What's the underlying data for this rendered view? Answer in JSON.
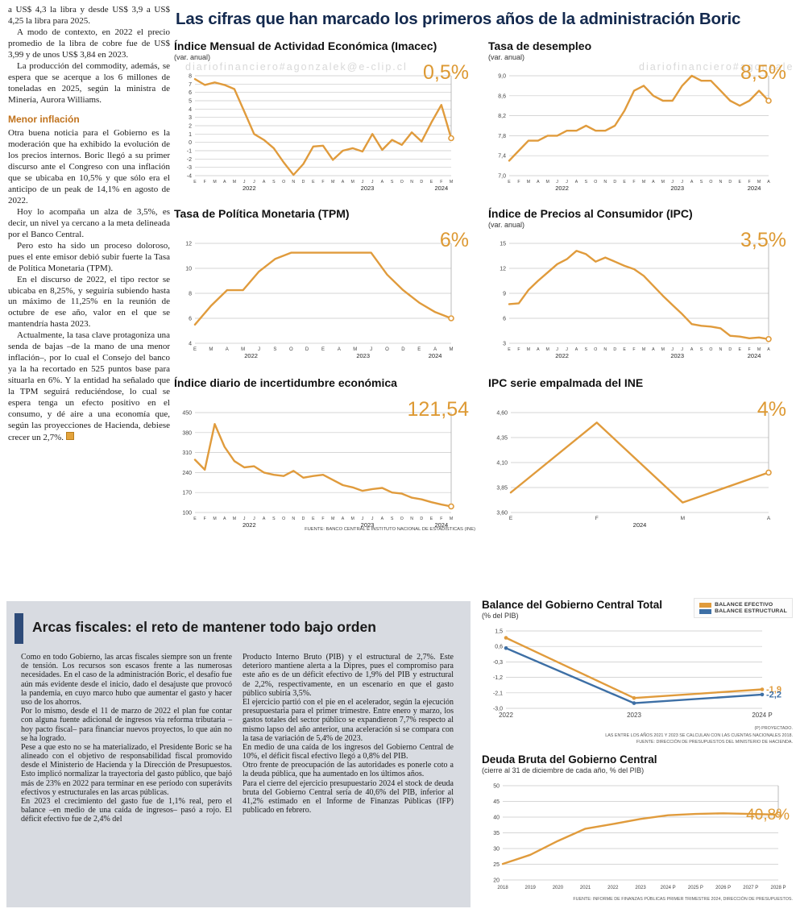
{
  "watermark": "diariofinanciero#agonzalek@e-clip.cl",
  "headline": "Las cifras que han marcado los primeros años de la administración Boric",
  "article": {
    "paragraphs_top": [
      "a US$ 4,3 la libra y desde US$ 3,9 a US$ 4,25 la libra para 2025.",
      "A modo de contexto, en 2022 el precio promedio de la libra de cobre fue de US$ 3,99 y de unos US$ 3,84 en 2023.",
      "La producción del commodity, además, se espera que se acerque a los 6 millones de toneladas en 2025, según la ministra de Minería, Aurora Williams."
    ],
    "subhead": "Menor inflación",
    "paragraphs_bottom": [
      "Otra buena noticia para el Gobierno es la moderación que ha exhibido la evolución de los precios internos. Boric llegó a su primer discurso ante el Congreso con una inflación que se ubicaba en 10,5% y que sólo era el anticipo de un peak de 14,1% en agosto de 2022.",
      "Hoy lo acompaña un alza de 3,5%, es decir, un nivel ya cercano a la meta delineada por el Banco Central.",
      "Pero esto ha sido un proceso doloroso, pues el ente emisor debió subir fuerte la Tasa de Política Monetaria (TPM).",
      "En el discurso de 2022, el tipo rector se ubicaba en 8,25%, y seguiría subiendo hasta un máximo de 11,25% en la reunión de octubre de ese año, valor en el que se mantendría hasta 2023.",
      "Actualmente, la tasa clave protagoniza una senda de bajas –de la mano de una menor inflación–, por lo cual el Consejo del banco ya la ha recortado en 525 puntos base para situarla en 6%. Y la entidad ha señalado que la TPM seguirá reduciéndose, lo cual se espera tenga un efecto positivo en el consumo, y dé aire a una economía que, según las proyecciones de Hacienda, debiese crecer un 2,7%."
    ]
  },
  "sources": {
    "top": "FUENTE: BANCO CENTRAL E INSTITUTO NACIONAL DE ESTADÍSTICAS (INE)"
  },
  "fiscal": {
    "headline": "Arcas fiscales: el reto de mantener todo bajo orden",
    "col1": [
      "Como en todo Gobierno, las arcas fiscales siempre son un frente de tensión. Los recursos son escasos frente a las numerosas necesidades. En el caso de la administración Boric, el desafío fue aún más evidente desde el inicio, dado el desajuste que provocó la pandemia, en cuyo marco hubo que aumentar el gasto y hacer uso de los ahorros.",
      "Por lo mismo, desde el 11 de marzo de 2022 el plan fue contar con alguna fuente adicional de ingresos vía reforma tributaria –hoy pacto fiscal– para financiar nuevos proyectos, lo que aún no se ha logrado.",
      "Pese a que esto no se ha materializado, el Presidente Boric se ha alineado con el objetivo de responsabilidad fiscal promovido desde el Ministerio de Hacienda y la Dirección de Presupuestos. Esto implicó normalizar la trayectoria del gasto público, que bajó más de 23% en 2022 para terminar en ese período con superávits efectivos y estructurales en las arcas públicas.",
      "En 2023 el crecimiento del gasto fue de 1,1% real, pero el balance –en medio de una caída de ingresos– pasó a rojo. El déficit efectivo fue de 2,4% del"
    ],
    "col2": [
      "Producto Interno Bruto (PIB) y el estructural de 2,7%. Este deterioro mantiene alerta a la Dipres, pues el compromiso para este año es de un déficit efectivo de 1,9% del PIB y estructural de 2,2%, respectivamente, en un escenario en que el gasto público subiría 3,5%.",
      "El ejercicio partió con el pie en el acelerador, según la ejecución presupuestaria para el primer trimestre. Entre enero y marzo, los gastos totales del sector público se expandieron 7,7% respecto al mismo lapso del año anterior, una aceleración si se compara con la tasa de variación de 5,4% de 2023.",
      "En medio de una caída de los ingresos del Gobierno Central de 10%, el déficit fiscal efectivo llegó a 0,8% del PIB.",
      "Otro frente de preocupación de las autoridades es ponerle coto a la deuda pública, que ha aumentado en los últimos años.",
      "Para el cierre del ejercicio presupuestario 2024 el stock de deuda bruta del Gobierno Central sería de 40,6% del PIB, inferior al 41,2% estimado en el Informe de Finanzas Públicas (IFP) publicado en febrero."
    ]
  },
  "chart_data": [
    {
      "type": "line",
      "title": "Índice Mensual de Actividad Económica (Imacec)",
      "subtitle": "(var. anual)",
      "big_value": "0,5%",
      "ylim": [
        -4,
        8
      ],
      "yticks": [
        8,
        7,
        6,
        5,
        4,
        3,
        2,
        1,
        0,
        -1,
        -2,
        -3,
        -4
      ],
      "ytick_labels": [
        "8",
        "7",
        "6",
        "5",
        "4",
        "3",
        "2",
        "1",
        "0",
        "-1",
        "-2",
        "-3",
        "-4"
      ],
      "x_labels": [
        "E",
        "F",
        "M",
        "A",
        "M",
        "J",
        "J",
        "A",
        "S",
        "O",
        "N",
        "D",
        "E",
        "F",
        "M",
        "A",
        "M",
        "J",
        "J",
        "A",
        "S",
        "O",
        "N",
        "D",
        "E",
        "F",
        "M"
      ],
      "year_ranges": [
        {
          "label": "2022",
          "from": 0,
          "to": 11
        },
        {
          "label": "2023",
          "from": 12,
          "to": 23
        },
        {
          "label": "2024",
          "from": 24,
          "to": 26
        }
      ],
      "series": [
        {
          "name": "Imacec",
          "color": "#e09b3c",
          "values": [
            7.6,
            6.9,
            7.2,
            6.9,
            6.4,
            3.7,
            1.0,
            0.3,
            -0.7,
            -2.4,
            -3.9,
            -2.6,
            -0.5,
            -0.4,
            -2.1,
            -1.0,
            -0.7,
            -1.1,
            1.0,
            -0.9,
            0.3,
            -0.3,
            1.2,
            0.1,
            2.4,
            4.5,
            0.5
          ]
        }
      ],
      "end_marker": true
    },
    {
      "type": "line",
      "title": "Tasa de desempleo",
      "subtitle": "(var. anual)",
      "big_value": "8,5%",
      "ylim": [
        7.0,
        9.0
      ],
      "yticks": [
        9.0,
        8.6,
        8.2,
        7.8,
        7.4,
        7.0
      ],
      "ytick_labels": [
        "9,0",
        "8,6",
        "8,2",
        "7,8",
        "7,4",
        "7,0"
      ],
      "x_labels": [
        "E",
        "F",
        "M",
        "A",
        "M",
        "J",
        "J",
        "A",
        "S",
        "O",
        "N",
        "D",
        "E",
        "F",
        "M",
        "A",
        "M",
        "J",
        "J",
        "A",
        "S",
        "O",
        "N",
        "D",
        "E",
        "F",
        "M",
        "A"
      ],
      "year_ranges": [
        {
          "label": "2022",
          "from": 0,
          "to": 11
        },
        {
          "label": "2023",
          "from": 12,
          "to": 23
        },
        {
          "label": "2024",
          "from": 24,
          "to": 27
        }
      ],
      "series": [
        {
          "name": "Tasa de desempleo",
          "color": "#e09b3c",
          "values": [
            7.3,
            7.5,
            7.7,
            7.7,
            7.8,
            7.8,
            7.9,
            7.9,
            8.0,
            7.9,
            7.9,
            8.0,
            8.3,
            8.7,
            8.8,
            8.6,
            8.5,
            8.5,
            8.8,
            9.0,
            8.9,
            8.9,
            8.7,
            8.5,
            8.4,
            8.5,
            8.7,
            8.5
          ]
        }
      ],
      "end_marker": true
    },
    {
      "type": "line",
      "title": "Tasa de Política Monetaria (TPM)",
      "subtitle": "",
      "big_value": "6%",
      "ylim": [
        4,
        12
      ],
      "yticks": [
        12,
        10,
        8,
        6,
        4
      ],
      "ytick_labels": [
        "12",
        "10",
        "8",
        "6",
        "4"
      ],
      "x_labels": [
        "E",
        "M",
        "A",
        "M",
        "J",
        "S",
        "O",
        "D",
        "E",
        "A",
        "M",
        "J",
        "O",
        "D",
        "E",
        "A",
        "M"
      ],
      "year_ranges": [
        {
          "label": "2022",
          "from": 0,
          "to": 7
        },
        {
          "label": "2023",
          "from": 8,
          "to": 13
        },
        {
          "label": "2024",
          "from": 14,
          "to": 16
        }
      ],
      "series": [
        {
          "name": "TPM",
          "color": "#e09b3c",
          "values": [
            5.5,
            7.0,
            8.25,
            8.25,
            9.75,
            10.75,
            11.25,
            11.25,
            11.25,
            11.25,
            11.25,
            11.25,
            9.5,
            8.25,
            7.25,
            6.5,
            6.0
          ]
        }
      ],
      "end_marker": true
    },
    {
      "type": "line",
      "title": "Índice de Precios al Consumidor (IPC)",
      "subtitle": "(var. anual)",
      "big_value": "3,5%",
      "ylim": [
        3,
        15
      ],
      "yticks": [
        15,
        12,
        9,
        6,
        3
      ],
      "ytick_labels": [
        "15",
        "12",
        "9",
        "6",
        "3"
      ],
      "x_labels": [
        "E",
        "F",
        "M",
        "A",
        "M",
        "J",
        "J",
        "A",
        "S",
        "O",
        "N",
        "D",
        "E",
        "F",
        "M",
        "A",
        "M",
        "J",
        "J",
        "A",
        "S",
        "O",
        "N",
        "D",
        "E",
        "F",
        "M",
        "A"
      ],
      "year_ranges": [
        {
          "label": "2022",
          "from": 0,
          "to": 11
        },
        {
          "label": "2023",
          "from": 12,
          "to": 23
        },
        {
          "label": "2024",
          "from": 24,
          "to": 27
        }
      ],
      "series": [
        {
          "name": "IPC",
          "color": "#e09b3c",
          "values": [
            7.7,
            7.8,
            9.4,
            10.5,
            11.5,
            12.5,
            13.1,
            14.1,
            13.7,
            12.8,
            13.3,
            12.8,
            12.3,
            11.9,
            11.1,
            9.9,
            8.7,
            7.6,
            6.5,
            5.3,
            5.1,
            5.0,
            4.8,
            3.9,
            3.8,
            3.6,
            3.7,
            3.5
          ]
        }
      ],
      "end_marker": true
    },
    {
      "type": "line",
      "title": "Índice diario de incertidumbre económica",
      "subtitle": "",
      "big_value": "121,54",
      "ylim": [
        100,
        450
      ],
      "yticks": [
        450,
        380,
        310,
        240,
        170,
        100
      ],
      "ytick_labels": [
        "450",
        "380",
        "310",
        "240",
        "170",
        "100"
      ],
      "x_labels": [
        "E",
        "F",
        "M",
        "A",
        "M",
        "J",
        "J",
        "A",
        "S",
        "O",
        "N",
        "D",
        "E",
        "F",
        "M",
        "A",
        "M",
        "J",
        "J",
        "A",
        "S",
        "O",
        "N",
        "D",
        "E",
        "F",
        "M"
      ],
      "year_ranges": [
        {
          "label": "2022",
          "from": 0,
          "to": 11
        },
        {
          "label": "2023",
          "from": 12,
          "to": 23
        },
        {
          "label": "2024",
          "from": 24,
          "to": 26
        }
      ],
      "series": [
        {
          "name": "Incertidumbre económica",
          "color": "#e09b3c",
          "values": [
            285,
            250,
            410,
            330,
            280,
            258,
            262,
            240,
            232,
            228,
            246,
            222,
            228,
            232,
            214,
            196,
            188,
            176,
            182,
            186,
            170,
            166,
            152,
            146,
            136,
            128,
            121.54
          ]
        }
      ],
      "end_marker": true
    },
    {
      "type": "line",
      "title": "IPC serie empalmada del INE",
      "subtitle": "",
      "big_value": "4%",
      "ylim": [
        3.6,
        4.6
      ],
      "yticks": [
        4.6,
        4.35,
        4.1,
        3.85,
        3.6
      ],
      "ytick_labels": [
        "4,60",
        "4,35",
        "4,10",
        "3,85",
        "3,60"
      ],
      "x_labels": [
        "E",
        "F",
        "M",
        "A"
      ],
      "year_ranges": [
        {
          "label": "2024",
          "from": 0,
          "to": 3
        }
      ],
      "series": [
        {
          "name": "IPC empalmado",
          "color": "#e09b3c",
          "values": [
            3.8,
            4.5,
            3.7,
            4.0
          ]
        }
      ],
      "end_marker": true
    },
    {
      "type": "line",
      "title": "Balance del Gobierno Central Total",
      "subtitle": "(% del PIB)",
      "legend": [
        {
          "label": "BALANCE EFECTIVO",
          "color": "#e09b3c"
        },
        {
          "label": "BALANCE ESTRUCTURAL",
          "color": "#3d6fa5"
        }
      ],
      "ylim": [
        -3.0,
        1.5
      ],
      "yticks": [
        1.5,
        0.6,
        -0.3,
        -1.2,
        -2.1,
        -3.0
      ],
      "ytick_labels": [
        "1,5",
        "0,6",
        "-0,3",
        "-1,2",
        "-2,1",
        "-3,0"
      ],
      "x_labels": [
        "2022",
        "2023",
        "2024 P"
      ],
      "series": [
        {
          "name": "BALANCE EFECTIVO",
          "color": "#e09b3c",
          "values": [
            1.1,
            -2.4,
            -1.9
          ],
          "markers": true,
          "end_label": "-1,9"
        },
        {
          "name": "BALANCE ESTRUCTURAL",
          "color": "#3d6fa5",
          "values": [
            0.5,
            -2.7,
            -2.2
          ],
          "markers": true,
          "end_label": "-2,2"
        }
      ],
      "footnotes": [
        "(P) PROYECTADO.",
        "LAS ENTRE LOS AÑOS 2021 Y 2023 SE CALCULAN CON LAS CUENTAS NACIONALES 2018.",
        "FUENTE: DIRECCIÓN DE PRESUPUESTOS DEL MINISTERIO DE HACIENDA."
      ]
    },
    {
      "type": "line",
      "title": "Deuda Bruta del Gobierno Central",
      "subtitle": "(cierre al 31 de diciembre de cada año, % del PIB)",
      "big_value": "40,8%",
      "ylim": [
        20,
        50
      ],
      "yticks": [
        50,
        45,
        40,
        35,
        30,
        25,
        20
      ],
      "ytick_labels": [
        "50",
        "45",
        "40",
        "35",
        "30",
        "25",
        "20"
      ],
      "x_labels": [
        "2018",
        "2019",
        "2020",
        "2021",
        "2022",
        "2023",
        "2024 P",
        "2025 P",
        "2026 P",
        "2027 P",
        "2028 P"
      ],
      "series": [
        {
          "name": "Deuda bruta",
          "color": "#e09b3c",
          "values": [
            25.1,
            28.0,
            32.4,
            36.3,
            37.8,
            39.4,
            40.6,
            41.0,
            41.2,
            41.0,
            40.8
          ]
        }
      ],
      "end_marker": true,
      "footnotes": [
        "FUENTE: INFORME DE FINANZAS PÚBLICAS PRIMER TRIMESTRE 2024, DIRECCIÓN DE PRESUPUESTOS."
      ]
    }
  ],
  "colors": {
    "accent_orange": "#e09b3c",
    "accent_blue": "#3d6fa5",
    "headline_navy": "#13294e",
    "panel_gray": "#d8dbe1"
  }
}
